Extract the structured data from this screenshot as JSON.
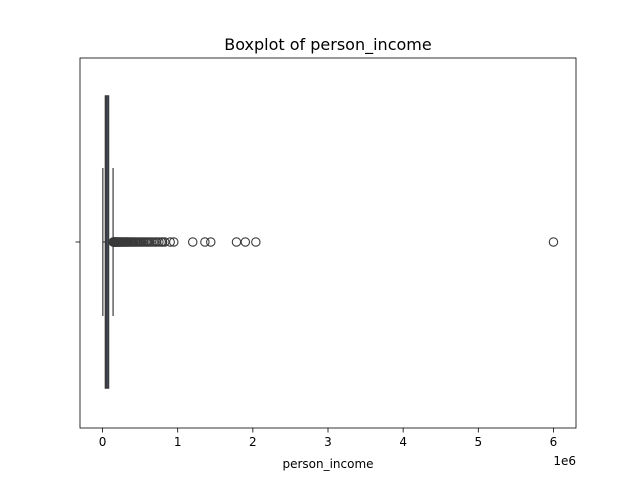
{
  "chart_data": {
    "type": "box",
    "orientation": "horizontal",
    "title": "Boxplot of person_income",
    "xlabel": "person_income",
    "ylabel": "",
    "x_offset_text": "1e6",
    "xlim": [
      -300000,
      6300000
    ],
    "xticks": [
      0,
      1000000,
      2000000,
      3000000,
      4000000,
      5000000,
      6000000
    ],
    "xtick_labels": [
      "0",
      "1",
      "2",
      "3",
      "4",
      "5",
      "6"
    ],
    "grid": false,
    "colors": {
      "box_fill": "#4c72b0",
      "lines": "#3a3a3a",
      "frame": "#000000"
    },
    "box": {
      "whisker_low": 4000,
      "q1": 38500,
      "median": 55000,
      "q3": 79200,
      "whisker_high": 140250
    },
    "outliers": [
      142000,
      145000,
      148000,
      152000,
      156000,
      160000,
      165000,
      170000,
      175000,
      180000,
      186000,
      192000,
      198000,
      205000,
      212000,
      220000,
      228000,
      236000,
      245000,
      255000,
      265000,
      275000,
      286000,
      298000,
      310000,
      322000,
      335000,
      348000,
      362000,
      376000,
      390000,
      405000,
      420000,
      436000,
      452000,
      470000,
      488000,
      506000,
      525000,
      545000,
      565000,
      585000,
      605000,
      625000,
      648000,
      672000,
      700000,
      720000,
      750000,
      780000,
      800000,
      828000,
      900000,
      948000,
      1200000,
      1362000,
      1440000,
      1782000,
      1900000,
      2039784,
      6000000
    ]
  }
}
